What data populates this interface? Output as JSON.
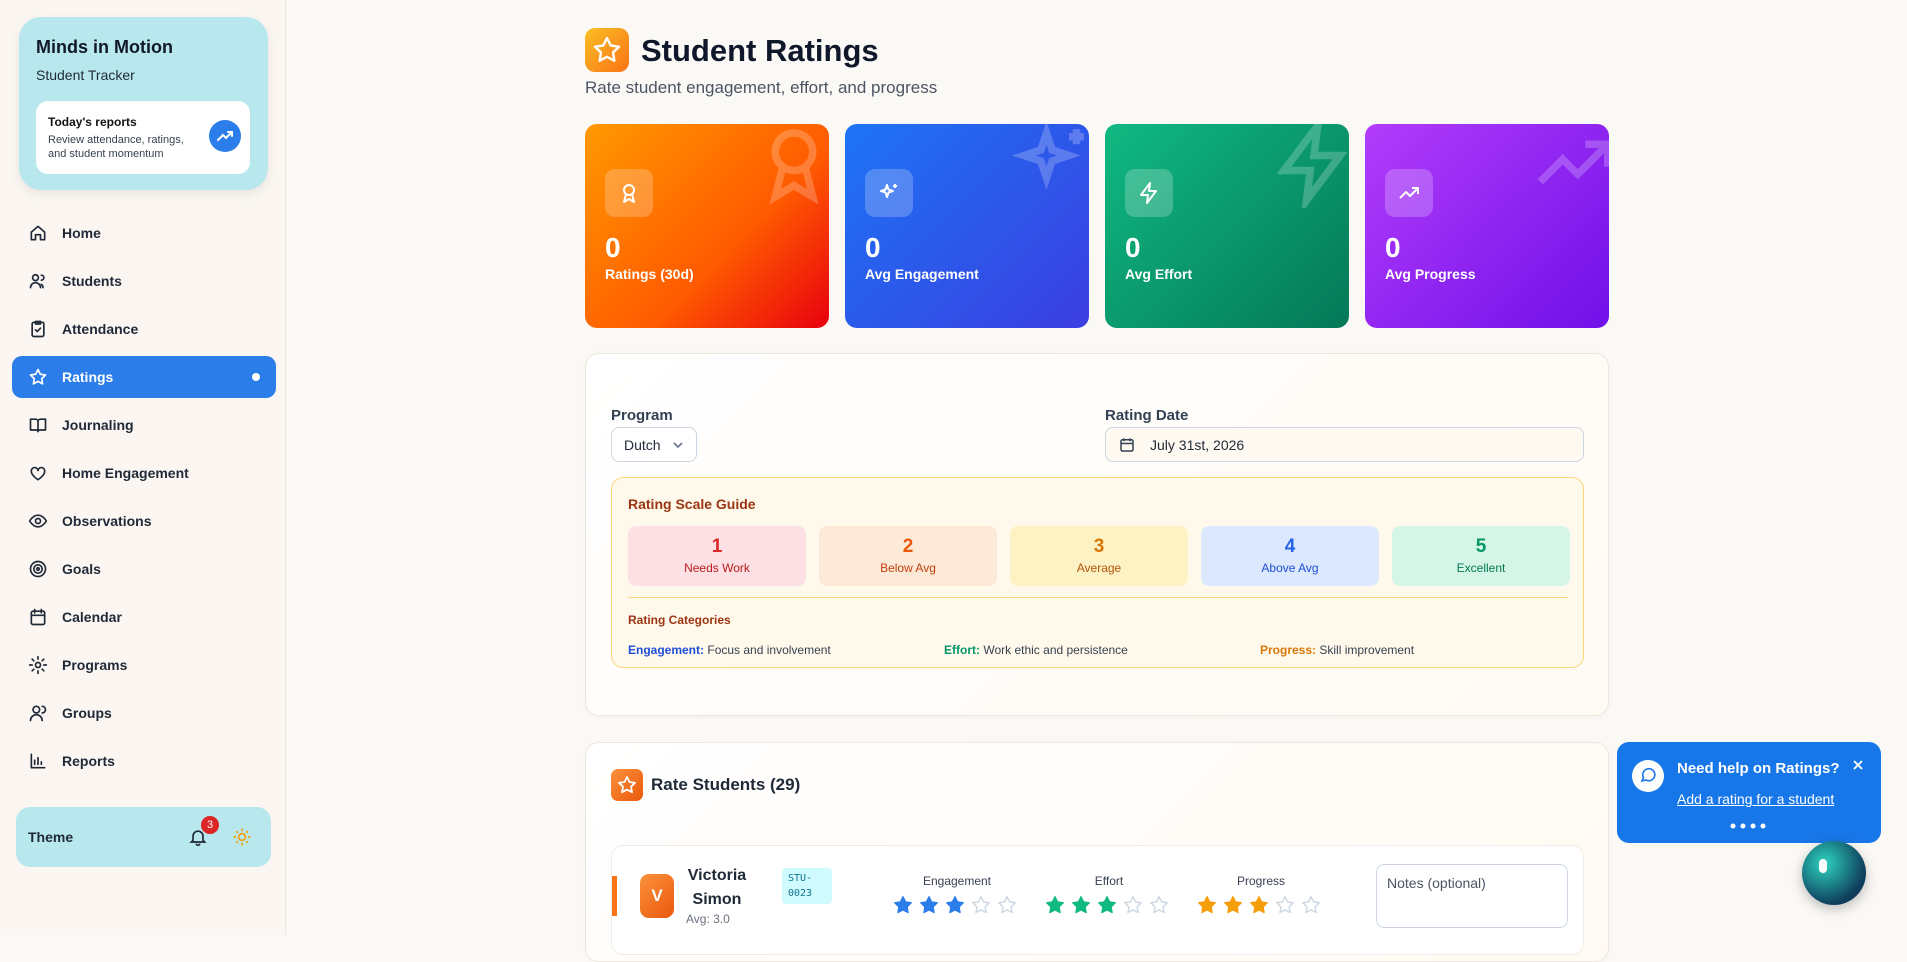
{
  "sidebar": {
    "brand_title": "Minds in Motion",
    "brand_subtitle": "Student Tracker",
    "today_title": "Today's reports",
    "today_text": "Review attendance, ratings, and student momentum",
    "nav": [
      "Home",
      "Students",
      "Attendance",
      "Ratings",
      "Journaling",
      "Home Engagement",
      "Observations",
      "Goals",
      "Calendar",
      "Programs",
      "Groups",
      "Reports"
    ],
    "active": "Ratings",
    "theme_label": "Theme",
    "notifications": 3
  },
  "header": {
    "title": "Student Ratings",
    "subtitle": "Rate student engagement, effort, and progress"
  },
  "stats": [
    {
      "value": 0,
      "label": "Ratings (30d)"
    },
    {
      "value": 0,
      "label": "Avg Engagement"
    },
    {
      "value": 0,
      "label": "Avg Effort"
    },
    {
      "value": 0,
      "label": "Avg Progress"
    }
  ],
  "filters": {
    "program_label": "Program",
    "program_value": "Dutch",
    "date_label": "Rating Date",
    "date_value": "July 31st, 2026"
  },
  "guide": {
    "title": "Rating Scale Guide",
    "scale": [
      {
        "value": 1,
        "label": "Needs Work"
      },
      {
        "value": 2,
        "label": "Below Avg"
      },
      {
        "value": 3,
        "label": "Average"
      },
      {
        "value": 4,
        "label": "Above Avg"
      },
      {
        "value": 5,
        "label": "Excellent"
      }
    ],
    "categories_title": "Rating Categories",
    "categories": [
      {
        "name": "Engagement:",
        "text": "Focus and involvement"
      },
      {
        "name": "Effort:",
        "text": "Work ethic and persistence"
      },
      {
        "name": "Progress:",
        "text": "Skill improvement"
      }
    ]
  },
  "rate": {
    "title": "Rate Students (29)",
    "students": [
      {
        "initial": "V",
        "name": "Victoria Simon",
        "id": "STU-0023",
        "avg": "Avg: 3.0",
        "ratings": [
          {
            "name": "Engagement",
            "value": 3
          },
          {
            "name": "Effort",
            "value": 3
          },
          {
            "name": "Progress",
            "value": 3
          }
        ],
        "notes_placeholder": "Notes (optional)"
      }
    ]
  },
  "help": {
    "title": "Need help on Ratings?",
    "link": "Add a rating for a student"
  }
}
